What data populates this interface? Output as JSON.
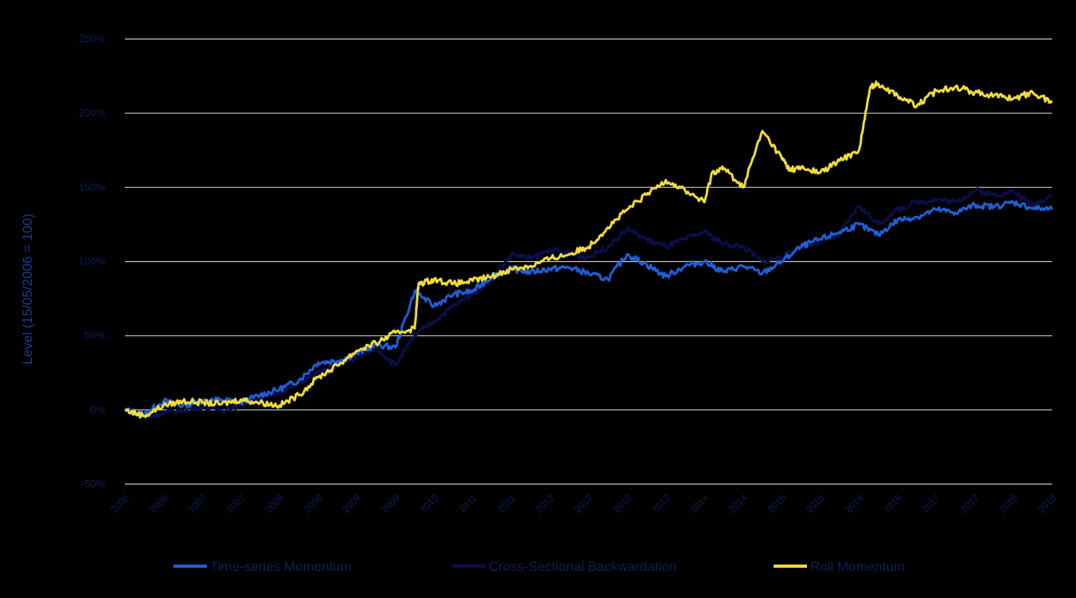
{
  "chart_data": {
    "type": "line",
    "title": "",
    "xlabel": "",
    "ylabel": "Level (15/05/2006 = 100)",
    "y_tick_labels": [
      "-50%",
      "0%",
      "50%",
      "100%",
      "150%",
      "200%",
      "250%"
    ],
    "y_tick_values": [
      -50,
      0,
      50,
      100,
      150,
      200,
      250
    ],
    "ylim": [
      -50,
      250
    ],
    "x_tick_labels": [
      "2006",
      "2006",
      "2007",
      "2007",
      "2008",
      "2008",
      "2009",
      "2009",
      "2010",
      "2011",
      "2011",
      "2012",
      "2012",
      "2013",
      "2013",
      "2014",
      "2014",
      "2015",
      "2015",
      "2016",
      "2016",
      "2017",
      "2017",
      "2018",
      "2018"
    ],
    "x_range": [
      0,
      24
    ],
    "grid": true,
    "legend_position": "bottom",
    "series": [
      {
        "name": "Time-series Momentum",
        "color": "#1f5fd6",
        "x": [
          0,
          0.5,
          1,
          1.5,
          2,
          2.5,
          3,
          3.5,
          4,
          4.5,
          5,
          5.5,
          6,
          6.5,
          7,
          7.5,
          8,
          8.5,
          9,
          9.5,
          10,
          10.5,
          11,
          11.5,
          12,
          12.5,
          13,
          13.5,
          14,
          14.5,
          15,
          15.5,
          16,
          16.5,
          17,
          17.5,
          18,
          18.5,
          19,
          19.5,
          20,
          20.5,
          21,
          21.5,
          22,
          22.5,
          23,
          23.5,
          24
        ],
        "values": [
          0,
          -3,
          6,
          3,
          6,
          7,
          5,
          10,
          14,
          20,
          32,
          33,
          38,
          44,
          42,
          80,
          70,
          78,
          80,
          90,
          95,
          93,
          95,
          96,
          92,
          88,
          105,
          98,
          90,
          97,
          100,
          93,
          97,
          92,
          100,
          110,
          115,
          120,
          125,
          118,
          128,
          130,
          135,
          133,
          138,
          137,
          140,
          136,
          135
        ]
      },
      {
        "name": "Cross-Sectional Backwardation",
        "color": "#0a0f4a",
        "x": [
          0,
          0.5,
          1,
          1.5,
          2,
          2.5,
          3,
          3.5,
          4,
          4.5,
          5,
          5.5,
          6,
          6.5,
          7,
          7.5,
          8,
          8.5,
          9,
          9.5,
          10,
          10.5,
          11,
          11.5,
          12,
          12.5,
          13,
          13.5,
          14,
          14.5,
          15,
          15.5,
          16,
          16.5,
          17,
          17.5,
          18,
          18.5,
          19,
          19.5,
          20,
          20.5,
          21,
          21.5,
          22,
          22.5,
          23,
          23.5,
          24
        ],
        "values": [
          0,
          -5,
          -2,
          0,
          2,
          0,
          3,
          8,
          12,
          18,
          25,
          30,
          35,
          42,
          30,
          50,
          60,
          70,
          78,
          88,
          105,
          102,
          108,
          105,
          103,
          110,
          122,
          115,
          110,
          115,
          120,
          112,
          110,
          100,
          103,
          110,
          113,
          118,
          138,
          125,
          135,
          140,
          142,
          140,
          148,
          145,
          147,
          138,
          145
        ]
      },
      {
        "name": "Roll Momentum",
        "color": "#f0dc3c",
        "x": [
          0,
          0.5,
          1,
          1.5,
          2,
          2.5,
          3,
          3.5,
          4,
          4.5,
          5,
          5.5,
          6,
          6.5,
          7,
          7.5,
          7.6,
          8,
          8.5,
          9,
          9.5,
          10,
          10.5,
          11,
          11.5,
          12,
          12.5,
          13,
          13.5,
          14,
          14.5,
          15,
          15.2,
          15.5,
          16,
          16.5,
          17,
          17.2,
          17.5,
          18,
          18.5,
          19,
          19.3,
          19.5,
          20,
          20.5,
          21,
          21.5,
          22,
          22.5,
          23,
          23.5,
          24
        ],
        "values": [
          0,
          -4,
          3,
          6,
          5,
          4,
          7,
          5,
          3,
          10,
          22,
          30,
          40,
          45,
          52,
          55,
          85,
          88,
          85,
          87,
          90,
          95,
          97,
          102,
          105,
          110,
          123,
          135,
          145,
          155,
          148,
          140,
          160,
          163,
          150,
          188,
          170,
          162,
          163,
          160,
          168,
          175,
          218,
          220,
          212,
          205,
          215,
          218,
          214,
          212,
          210,
          214,
          207
        ]
      }
    ]
  }
}
